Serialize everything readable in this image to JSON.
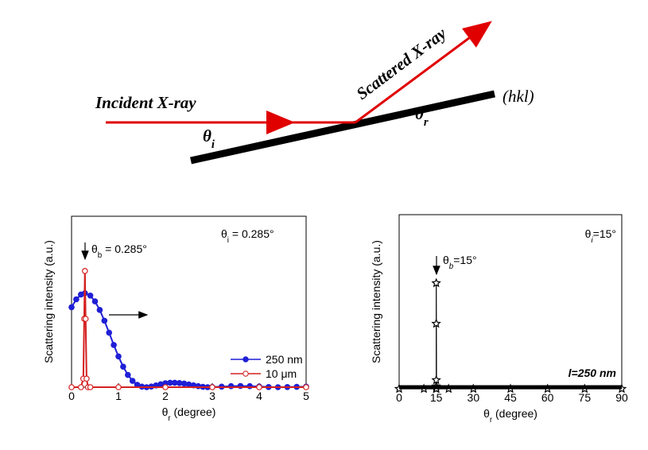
{
  "diagram": {
    "incident": "Incident X-ray",
    "scattered": "Scattered X-ray",
    "theta_i": {
      "pre": "θ",
      "sub": "i"
    },
    "theta_r": {
      "pre": "θ",
      "sub": "r"
    },
    "plane": "(hkl)"
  },
  "chart_data": [
    {
      "type": "line",
      "ylabel": "Scattering intensity (a.u.)",
      "xlabel": {
        "pre": "θ",
        "sub": "r",
        "post": " (degree)"
      },
      "annotations": [
        {
          "pre": "θ",
          "sub": "i",
          "post": " = 0.285°"
        },
        {
          "pre": "θ",
          "sub": "b",
          "post": " = 0.285°"
        }
      ],
      "xlim": [
        0,
        5
      ],
      "ylim": [
        0,
        1
      ],
      "xticks": [
        0,
        1,
        2,
        3,
        4,
        5
      ],
      "legend": "lower right",
      "series": [
        {
          "name": "250 nm",
          "color": "#1f1fd6",
          "marker": "circle",
          "marker_fill": "filled",
          "x": [
            0,
            0.1,
            0.2,
            0.285,
            0.4,
            0.5,
            0.6,
            0.7,
            0.8,
            0.9,
            1.0,
            1.1,
            1.2,
            1.3,
            1.4,
            1.5,
            1.6,
            1.7,
            1.8,
            1.9,
            2.0,
            2.1,
            2.2,
            2.3,
            2.4,
            2.5,
            2.6,
            2.7,
            2.8,
            2.9,
            3.0,
            3.2,
            3.4,
            3.6,
            3.8,
            4.0,
            4.2,
            4.4,
            4.6,
            4.8,
            5.0
          ],
          "values": [
            0.468,
            0.514,
            0.542,
            0.55,
            0.536,
            0.502,
            0.452,
            0.389,
            0.319,
            0.247,
            0.18,
            0.12,
            0.072,
            0.037,
            0.014,
            0.003,
            0,
            0.004,
            0.01,
            0.017,
            0.023,
            0.026,
            0.026,
            0.024,
            0.021,
            0.016,
            0.011,
            0.006,
            0.002,
            0,
            0.001,
            0.003,
            0.006,
            0.007,
            0.006,
            0.004,
            0.001,
            0,
            0.001,
            0.002,
            0.003
          ]
        },
        {
          "name": "10 μm",
          "color": "#d42020",
          "marker": "circle",
          "marker_fill": "open",
          "x": [
            0,
            0.2,
            0.25,
            0.27,
            0.285,
            0.3,
            0.32,
            0.35,
            0.4,
            1,
            2,
            3,
            4,
            5
          ],
          "values": [
            0,
            0,
            0.05,
            0.4,
            0.68,
            0.4,
            0.05,
            0,
            0,
            0,
            0,
            0,
            0,
            0
          ]
        }
      ]
    },
    {
      "type": "line",
      "ylabel": "Scattering intensity (a.u.)",
      "xlabel": {
        "pre": "θ",
        "sub": "r",
        "post": " (degree)"
      },
      "annotations": [
        {
          "pre": "θ",
          "sub": "i",
          "post": "=15°"
        },
        {
          "pre": "θ",
          "sub": "b",
          "post": "=15°"
        },
        "l=250 nm"
      ],
      "xlim": [
        0,
        90
      ],
      "ylim": [
        0,
        1
      ],
      "xticks": [
        0,
        15,
        30,
        45,
        60,
        75,
        90
      ],
      "series": [
        {
          "color": "#000000",
          "marker": "star",
          "marker_fill": "open",
          "x": [
            0,
            10,
            14.9,
            15,
            15,
            15,
            15,
            15.1,
            20,
            30,
            45,
            60,
            75,
            90
          ],
          "values": [
            0,
            0,
            0,
            0.014,
            0.05,
            0.374,
            0.607,
            0,
            0,
            0,
            0,
            0,
            0,
            0
          ]
        }
      ]
    }
  ]
}
